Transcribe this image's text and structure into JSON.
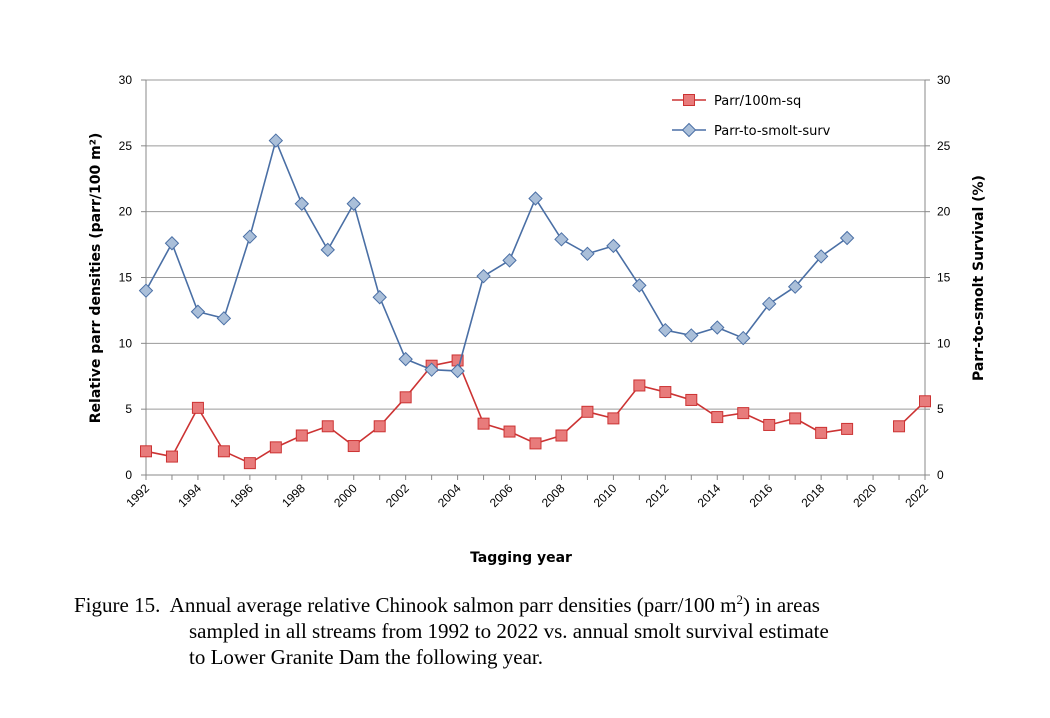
{
  "chart_data": {
    "type": "line",
    "xlabel": "Tagging year",
    "ylabel_left": "Relative parr densities (parr/100 m²)",
    "ylabel_right": "Parr-to-smolt Survival (%)",
    "ylim_left": [
      0,
      30
    ],
    "ylim_right": [
      0,
      30
    ],
    "xlim": [
      1992,
      2022
    ],
    "y_ticks": [
      "0",
      "5",
      "10",
      "15",
      "20",
      "25",
      "30"
    ],
    "x_ticks": [
      "1992",
      "1994",
      "1996",
      "1998",
      "2000",
      "2002",
      "2004",
      "2006",
      "2008",
      "2010",
      "2012",
      "2014",
      "2016",
      "2018",
      "2020",
      "2022"
    ],
    "grid": true,
    "legend_position": "top-right",
    "series": [
      {
        "name": "Parr/100m-sq",
        "axis": "left",
        "marker": "square",
        "color": "#cc3333",
        "fill": "#e87b7b",
        "points": [
          [
            1992,
            1.8
          ],
          [
            1993,
            1.4
          ],
          [
            1994,
            5.1
          ],
          [
            1995,
            1.8
          ],
          [
            1996,
            0.9
          ],
          [
            1997,
            2.1
          ],
          [
            1998,
            3.0
          ],
          [
            1999,
            3.7
          ],
          [
            2000,
            2.2
          ],
          [
            2001,
            3.7
          ],
          [
            2002,
            5.9
          ],
          [
            2003,
            8.3
          ],
          [
            2004,
            8.7
          ],
          [
            2005,
            3.9
          ],
          [
            2006,
            3.3
          ],
          [
            2007,
            2.4
          ],
          [
            2008,
            3.0
          ],
          [
            2009,
            4.8
          ],
          [
            2010,
            4.3
          ],
          [
            2011,
            6.8
          ],
          [
            2012,
            6.3
          ],
          [
            2013,
            5.7
          ],
          [
            2014,
            4.4
          ],
          [
            2015,
            4.7
          ],
          [
            2016,
            3.8
          ],
          [
            2017,
            4.3
          ],
          [
            2018,
            3.2
          ],
          [
            2019,
            3.5
          ],
          [
            2021,
            3.7
          ],
          [
            2022,
            5.6
          ]
        ]
      },
      {
        "name": "Parr-to-smolt-surv",
        "axis": "right",
        "marker": "diamond",
        "color": "#4a6fa5",
        "fill": "#aabfd9",
        "points": [
          [
            1992,
            14.0
          ],
          [
            1993,
            17.6
          ],
          [
            1994,
            12.4
          ],
          [
            1995,
            11.9
          ],
          [
            1996,
            18.1
          ],
          [
            1997,
            25.4
          ],
          [
            1998,
            20.6
          ],
          [
            1999,
            17.1
          ],
          [
            2000,
            20.6
          ],
          [
            2001,
            13.5
          ],
          [
            2002,
            8.8
          ],
          [
            2003,
            8.0
          ],
          [
            2004,
            7.9
          ],
          [
            2005,
            15.1
          ],
          [
            2006,
            16.3
          ],
          [
            2007,
            21.0
          ],
          [
            2008,
            17.9
          ],
          [
            2009,
            16.8
          ],
          [
            2010,
            17.4
          ],
          [
            2011,
            14.4
          ],
          [
            2012,
            11.0
          ],
          [
            2013,
            10.6
          ],
          [
            2014,
            11.2
          ],
          [
            2015,
            10.4
          ],
          [
            2016,
            13.0
          ],
          [
            2017,
            14.3
          ],
          [
            2018,
            16.6
          ],
          [
            2019,
            18.0
          ]
        ]
      }
    ]
  },
  "caption": {
    "label": "Figure 15.",
    "line1_a": "Annual average relative Chinook salmon parr densities (parr/100 m",
    "sup": "2",
    "line1_b": ") in areas",
    "line2": "sampled in all streams from 1992 to 2022 vs. annual smolt survival estimate",
    "line3": "to Lower Granite Dam the following year."
  }
}
